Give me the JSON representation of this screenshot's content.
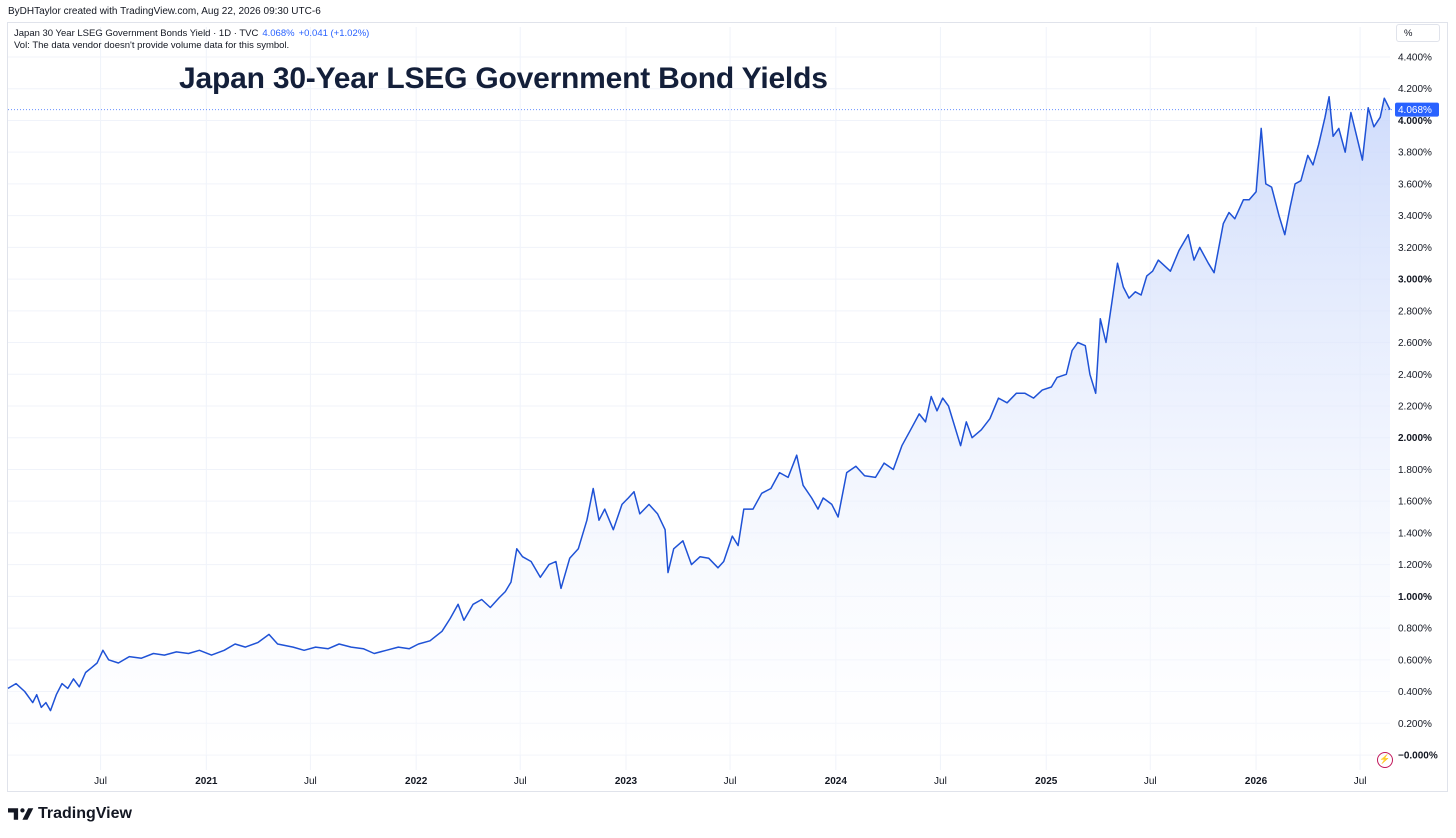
{
  "header": {
    "attribution": "ByDHTaylor created with TradingView.com, Aug 22, 2026 09:30 UTC-6"
  },
  "legend": {
    "symbol": "Japan 30 Year LSEG Government Bonds Yield · 1D · TVC",
    "value": "4.068%",
    "change": "+0.041 (+1.02%)",
    "volume_note": "Vol: The data vendor doesn't provide volume data for this symbol."
  },
  "unit_label": "%",
  "footer": {
    "brand": "TradingView"
  },
  "colors": {
    "line": "#1f52d6",
    "fill_top": "#cad8fb",
    "fill_bottom": "#ffffff",
    "last_price_bg": "#2962ff",
    "grid": "#f0f3fa"
  },
  "chart_data": {
    "type": "area",
    "title": "Japan 30-Year LSEG Government Bond Yields",
    "xlabel": "",
    "ylabel": "",
    "ylim": [
      0,
      4.4
    ],
    "last_value_label": "4.068%",
    "last_value": 4.068,
    "y_ticks": [
      {
        "v": 4.4,
        "label": "4.400%",
        "bold": false
      },
      {
        "v": 4.2,
        "label": "4.200%",
        "bold": false
      },
      {
        "v": 4.0,
        "label": "4.000%",
        "bold": true
      },
      {
        "v": 3.8,
        "label": "3.800%",
        "bold": false
      },
      {
        "v": 3.6,
        "label": "3.600%",
        "bold": false
      },
      {
        "v": 3.4,
        "label": "3.400%",
        "bold": false
      },
      {
        "v": 3.2,
        "label": "3.200%",
        "bold": false
      },
      {
        "v": 3.0,
        "label": "3.000%",
        "bold": true
      },
      {
        "v": 2.8,
        "label": "2.800%",
        "bold": false
      },
      {
        "v": 2.6,
        "label": "2.600%",
        "bold": false
      },
      {
        "v": 2.4,
        "label": "2.400%",
        "bold": false
      },
      {
        "v": 2.2,
        "label": "2.200%",
        "bold": false
      },
      {
        "v": 2.0,
        "label": "2.000%",
        "bold": true
      },
      {
        "v": 1.8,
        "label": "1.800%",
        "bold": false
      },
      {
        "v": 1.6,
        "label": "1.600%",
        "bold": false
      },
      {
        "v": 1.4,
        "label": "1.400%",
        "bold": false
      },
      {
        "v": 1.2,
        "label": "1.200%",
        "bold": false
      },
      {
        "v": 1.0,
        "label": "1.000%",
        "bold": true
      },
      {
        "v": 0.8,
        "label": "0.800%",
        "bold": false
      },
      {
        "v": 0.6,
        "label": "0.600%",
        "bold": false
      },
      {
        "v": 0.4,
        "label": "0.400%",
        "bold": false
      },
      {
        "v": 0.2,
        "label": "0.200%",
        "bold": false
      },
      {
        "v": 0.0,
        "label": "−0.000%",
        "bold": true
      }
    ],
    "x_ticks": [
      {
        "date": "2020-07-01",
        "label": "Jul",
        "bold": false
      },
      {
        "date": "2021-01-01",
        "label": "2021",
        "bold": true
      },
      {
        "date": "2021-07-01",
        "label": "Jul",
        "bold": false
      },
      {
        "date": "2022-01-01",
        "label": "2022",
        "bold": true
      },
      {
        "date": "2022-07-01",
        "label": "Jul",
        "bold": false
      },
      {
        "date": "2023-01-01",
        "label": "2023",
        "bold": true
      },
      {
        "date": "2023-07-01",
        "label": "Jul",
        "bold": false
      },
      {
        "date": "2024-01-01",
        "label": "2024",
        "bold": true
      },
      {
        "date": "2024-07-01",
        "label": "Jul",
        "bold": false
      },
      {
        "date": "2025-01-01",
        "label": "2025",
        "bold": true
      },
      {
        "date": "2025-07-01",
        "label": "Jul",
        "bold": false
      },
      {
        "date": "2026-01-01",
        "label": "2026",
        "bold": true
      },
      {
        "date": "2026-07-01",
        "label": "Jul",
        "bold": false
      }
    ],
    "xlim": [
      "2020-01-22",
      "2026-08-22"
    ],
    "series": [
      {
        "points": [
          [
            "2020-01-22",
            0.42
          ],
          [
            "2020-02-05",
            0.45
          ],
          [
            "2020-02-20",
            0.4
          ],
          [
            "2020-03-05",
            0.33
          ],
          [
            "2020-03-12",
            0.38
          ],
          [
            "2020-03-20",
            0.3
          ],
          [
            "2020-03-28",
            0.33
          ],
          [
            "2020-04-05",
            0.28
          ],
          [
            "2020-04-15",
            0.38
          ],
          [
            "2020-04-25",
            0.45
          ],
          [
            "2020-05-05",
            0.42
          ],
          [
            "2020-05-15",
            0.48
          ],
          [
            "2020-05-25",
            0.43
          ],
          [
            "2020-06-05",
            0.52
          ],
          [
            "2020-06-15",
            0.55
          ],
          [
            "2020-06-25",
            0.58
          ],
          [
            "2020-07-05",
            0.66
          ],
          [
            "2020-07-15",
            0.6
          ],
          [
            "2020-08-01",
            0.58
          ],
          [
            "2020-08-20",
            0.62
          ],
          [
            "2020-09-10",
            0.61
          ],
          [
            "2020-10-01",
            0.64
          ],
          [
            "2020-10-20",
            0.63
          ],
          [
            "2020-11-10",
            0.65
          ],
          [
            "2020-12-01",
            0.64
          ],
          [
            "2020-12-20",
            0.66
          ],
          [
            "2021-01-10",
            0.63
          ],
          [
            "2021-02-01",
            0.66
          ],
          [
            "2021-02-20",
            0.7
          ],
          [
            "2021-03-10",
            0.68
          ],
          [
            "2021-04-01",
            0.71
          ],
          [
            "2021-04-20",
            0.76
          ],
          [
            "2021-05-05",
            0.7
          ],
          [
            "2021-06-01",
            0.68
          ],
          [
            "2021-06-20",
            0.66
          ],
          [
            "2021-07-10",
            0.68
          ],
          [
            "2021-08-01",
            0.67
          ],
          [
            "2021-08-20",
            0.7
          ],
          [
            "2021-09-10",
            0.68
          ],
          [
            "2021-10-01",
            0.67
          ],
          [
            "2021-10-20",
            0.64
          ],
          [
            "2021-11-10",
            0.66
          ],
          [
            "2021-12-01",
            0.68
          ],
          [
            "2021-12-20",
            0.67
          ],
          [
            "2022-01-05",
            0.7
          ],
          [
            "2022-01-25",
            0.72
          ],
          [
            "2022-02-15",
            0.78
          ],
          [
            "2022-03-01",
            0.86
          ],
          [
            "2022-03-15",
            0.95
          ],
          [
            "2022-03-25",
            0.85
          ],
          [
            "2022-04-10",
            0.95
          ],
          [
            "2022-04-25",
            0.98
          ],
          [
            "2022-05-10",
            0.93
          ],
          [
            "2022-05-25",
            0.99
          ],
          [
            "2022-06-05",
            1.03
          ],
          [
            "2022-06-15",
            1.09
          ],
          [
            "2022-06-25",
            1.3
          ],
          [
            "2022-07-05",
            1.25
          ],
          [
            "2022-07-20",
            1.22
          ],
          [
            "2022-08-05",
            1.12
          ],
          [
            "2022-08-20",
            1.2
          ],
          [
            "2022-09-01",
            1.22
          ],
          [
            "2022-09-10",
            1.05
          ],
          [
            "2022-09-25",
            1.24
          ],
          [
            "2022-10-10",
            1.3
          ],
          [
            "2022-10-25",
            1.48
          ],
          [
            "2022-11-05",
            1.68
          ],
          [
            "2022-11-15",
            1.48
          ],
          [
            "2022-11-25",
            1.55
          ],
          [
            "2022-12-10",
            1.42
          ],
          [
            "2022-12-25",
            1.58
          ],
          [
            "2023-01-05",
            1.62
          ],
          [
            "2023-01-15",
            1.66
          ],
          [
            "2023-01-25",
            1.52
          ],
          [
            "2023-02-10",
            1.58
          ],
          [
            "2023-02-25",
            1.52
          ],
          [
            "2023-03-10",
            1.42
          ],
          [
            "2023-03-15",
            1.15
          ],
          [
            "2023-03-25",
            1.3
          ],
          [
            "2023-04-10",
            1.35
          ],
          [
            "2023-04-25",
            1.2
          ],
          [
            "2023-05-10",
            1.25
          ],
          [
            "2023-05-25",
            1.24
          ],
          [
            "2023-06-10",
            1.18
          ],
          [
            "2023-06-20",
            1.22
          ],
          [
            "2023-07-05",
            1.38
          ],
          [
            "2023-07-15",
            1.32
          ],
          [
            "2023-07-25",
            1.55
          ],
          [
            "2023-08-10",
            1.55
          ],
          [
            "2023-08-25",
            1.65
          ],
          [
            "2023-09-10",
            1.68
          ],
          [
            "2023-09-25",
            1.78
          ],
          [
            "2023-10-10",
            1.75
          ],
          [
            "2023-10-25",
            1.89
          ],
          [
            "2023-11-05",
            1.7
          ],
          [
            "2023-11-20",
            1.62
          ],
          [
            "2023-12-01",
            1.55
          ],
          [
            "2023-12-10",
            1.62
          ],
          [
            "2023-12-25",
            1.58
          ],
          [
            "2024-01-05",
            1.5
          ],
          [
            "2024-01-20",
            1.78
          ],
          [
            "2024-02-05",
            1.82
          ],
          [
            "2024-02-20",
            1.76
          ],
          [
            "2024-03-10",
            1.75
          ],
          [
            "2024-03-25",
            1.84
          ],
          [
            "2024-04-10",
            1.8
          ],
          [
            "2024-04-25",
            1.95
          ],
          [
            "2024-05-10",
            2.05
          ],
          [
            "2024-05-25",
            2.15
          ],
          [
            "2024-06-05",
            2.1
          ],
          [
            "2024-06-15",
            2.26
          ],
          [
            "2024-06-25",
            2.17
          ],
          [
            "2024-07-05",
            2.25
          ],
          [
            "2024-07-15",
            2.2
          ],
          [
            "2024-08-05",
            1.95
          ],
          [
            "2024-08-15",
            2.1
          ],
          [
            "2024-08-25",
            2.0
          ],
          [
            "2024-09-10",
            2.05
          ],
          [
            "2024-09-25",
            2.12
          ],
          [
            "2024-10-10",
            2.25
          ],
          [
            "2024-10-25",
            2.22
          ],
          [
            "2024-11-10",
            2.28
          ],
          [
            "2024-11-25",
            2.28
          ],
          [
            "2024-12-10",
            2.25
          ],
          [
            "2024-12-25",
            2.3
          ],
          [
            "2025-01-10",
            2.32
          ],
          [
            "2025-01-20",
            2.38
          ],
          [
            "2025-02-05",
            2.4
          ],
          [
            "2025-02-15",
            2.55
          ],
          [
            "2025-02-25",
            2.6
          ],
          [
            "2025-03-10",
            2.58
          ],
          [
            "2025-03-18",
            2.4
          ],
          [
            "2025-03-28",
            2.28
          ],
          [
            "2025-04-05",
            2.75
          ],
          [
            "2025-04-15",
            2.6
          ],
          [
            "2025-04-25",
            2.85
          ],
          [
            "2025-05-05",
            3.1
          ],
          [
            "2025-05-15",
            2.95
          ],
          [
            "2025-05-25",
            2.88
          ],
          [
            "2025-06-05",
            2.92
          ],
          [
            "2025-06-15",
            2.9
          ],
          [
            "2025-06-25",
            3.02
          ],
          [
            "2025-07-05",
            3.05
          ],
          [
            "2025-07-15",
            3.12
          ],
          [
            "2025-08-05",
            3.05
          ],
          [
            "2025-08-20",
            3.18
          ],
          [
            "2025-09-05",
            3.28
          ],
          [
            "2025-09-15",
            3.12
          ],
          [
            "2025-09-25",
            3.2
          ],
          [
            "2025-10-10",
            3.1
          ],
          [
            "2025-10-20",
            3.04
          ],
          [
            "2025-11-05",
            3.35
          ],
          [
            "2025-11-15",
            3.42
          ],
          [
            "2025-11-25",
            3.38
          ],
          [
            "2025-12-10",
            3.5
          ],
          [
            "2025-12-20",
            3.5
          ],
          [
            "2026-01-01",
            3.55
          ],
          [
            "2026-01-10",
            3.95
          ],
          [
            "2026-01-18",
            3.6
          ],
          [
            "2026-01-28",
            3.58
          ],
          [
            "2026-02-10",
            3.4
          ],
          [
            "2026-02-20",
            3.28
          ],
          [
            "2026-03-01",
            3.45
          ],
          [
            "2026-03-10",
            3.6
          ],
          [
            "2026-03-20",
            3.62
          ],
          [
            "2026-04-01",
            3.78
          ],
          [
            "2026-04-10",
            3.72
          ],
          [
            "2026-04-20",
            3.85
          ],
          [
            "2026-05-01",
            4.02
          ],
          [
            "2026-05-08",
            4.15
          ],
          [
            "2026-05-15",
            3.9
          ],
          [
            "2026-05-25",
            3.95
          ],
          [
            "2026-06-05",
            3.8
          ],
          [
            "2026-06-15",
            4.05
          ],
          [
            "2026-06-25",
            3.9
          ],
          [
            "2026-07-05",
            3.75
          ],
          [
            "2026-07-15",
            4.08
          ],
          [
            "2026-07-25",
            3.96
          ],
          [
            "2026-08-05",
            4.02
          ],
          [
            "2026-08-12",
            4.14
          ],
          [
            "2026-08-22",
            4.068
          ]
        ]
      }
    ]
  }
}
